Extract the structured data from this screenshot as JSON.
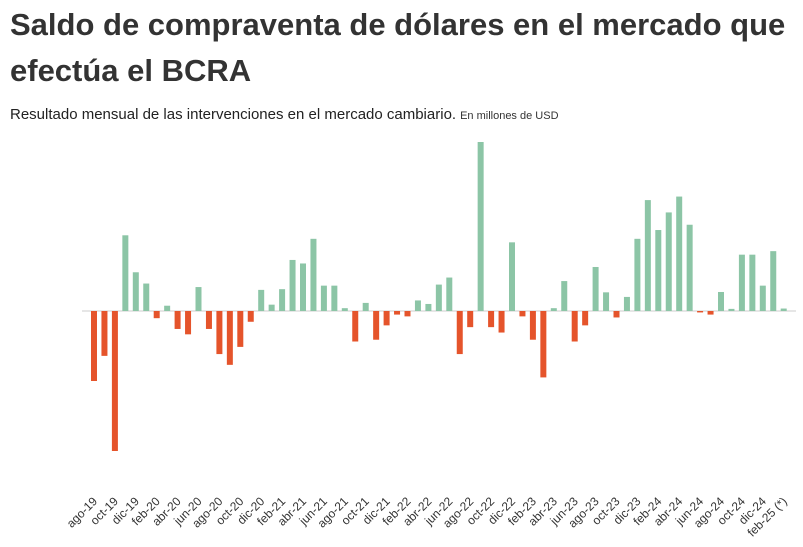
{
  "chart_data": {
    "type": "bar",
    "title": "Saldo de compraventa de dólares en el mercado que efectúa el BCRA",
    "subtitle": "Resultado  mensual de las intervenciones en el mercado cambiario.",
    "unit_note": "En millones de USD",
    "xlabel": "",
    "ylabel": "",
    "ylim": [
      -3900,
      4800
    ],
    "grid": false,
    "legend": "none",
    "colors": {
      "positive": "#8cc5a6",
      "negative": "#e5542b",
      "baseline": "#cccccc"
    },
    "categories": [
      "ago-19",
      "sep-19",
      "oct-19",
      "nov-19",
      "dic-19",
      "ene-20",
      "feb-20",
      "mar-20",
      "abr-20",
      "may-20",
      "jun-20",
      "jul-20",
      "ago-20",
      "sep-20",
      "oct-20",
      "nov-20",
      "dic-20",
      "ene-21",
      "feb-21",
      "mar-21",
      "abr-21",
      "may-21",
      "jun-21",
      "jul-21",
      "ago-21",
      "sep-21",
      "oct-21",
      "nov-21",
      "dic-21",
      "ene-22",
      "feb-22",
      "mar-22",
      "abr-22",
      "may-22",
      "jun-22",
      "jul-22",
      "ago-22",
      "sep-22",
      "oct-22",
      "nov-22",
      "dic-22",
      "ene-23",
      "feb-23",
      "mar-23",
      "abr-23",
      "may-23",
      "jun-23",
      "jul-23",
      "ago-23",
      "sep-23",
      "oct-23",
      "nov-23",
      "dic-23",
      "ene-24",
      "feb-24",
      "mar-24",
      "abr-24",
      "may-24",
      "jun-24",
      "jul-24",
      "ago-24",
      "sep-24",
      "oct-24",
      "nov-24",
      "dic-24",
      "ene-25",
      "feb-25 (*)"
    ],
    "tick_labels": [
      {
        "index": 0,
        "label": "ago-19"
      },
      {
        "index": 2,
        "label": "oct-19"
      },
      {
        "index": 4,
        "label": "dic-19"
      },
      {
        "index": 6,
        "label": "feb-20"
      },
      {
        "index": 8,
        "label": "abr-20"
      },
      {
        "index": 10,
        "label": "jun-20"
      },
      {
        "index": 12,
        "label": "ago-20"
      },
      {
        "index": 14,
        "label": "oct-20"
      },
      {
        "index": 16,
        "label": "dic-20"
      },
      {
        "index": 18,
        "label": "feb-21"
      },
      {
        "index": 20,
        "label": "abr-21"
      },
      {
        "index": 22,
        "label": "jun-21"
      },
      {
        "index": 24,
        "label": "ago-21"
      },
      {
        "index": 26,
        "label": "oct-21"
      },
      {
        "index": 28,
        "label": "dic-21"
      },
      {
        "index": 30,
        "label": "feb-22"
      },
      {
        "index": 32,
        "label": "abr-22"
      },
      {
        "index": 34,
        "label": "jun-22"
      },
      {
        "index": 36,
        "label": "ago-22"
      },
      {
        "index": 38,
        "label": "oct-22"
      },
      {
        "index": 40,
        "label": "dic-22"
      },
      {
        "index": 42,
        "label": "feb-23"
      },
      {
        "index": 44,
        "label": "abr-23"
      },
      {
        "index": 46,
        "label": "jun-23"
      },
      {
        "index": 48,
        "label": "ago-23"
      },
      {
        "index": 50,
        "label": "oct-23"
      },
      {
        "index": 52,
        "label": "dic-23"
      },
      {
        "index": 54,
        "label": "feb-24"
      },
      {
        "index": 56,
        "label": "abr-24"
      },
      {
        "index": 58,
        "label": "jun-24"
      },
      {
        "index": 60,
        "label": "ago-24"
      },
      {
        "index": 62,
        "label": "oct-24"
      },
      {
        "index": 64,
        "label": "dic-24"
      },
      {
        "index": 66,
        "label": "feb-25 (*)"
      }
    ],
    "values": [
      -1950,
      -1250,
      -3900,
      2150,
      1100,
      780,
      -200,
      150,
      -500,
      -650,
      680,
      -500,
      -1200,
      -1500,
      -1000,
      -300,
      600,
      180,
      620,
      1450,
      1350,
      2050,
      720,
      720,
      80,
      -850,
      230,
      -800,
      -400,
      -100,
      -150,
      300,
      200,
      750,
      950,
      -1200,
      -450,
      4800,
      -450,
      -600,
      1950,
      -150,
      -800,
      -1850,
      80,
      850,
      -850,
      -400,
      1250,
      530,
      -180,
      400,
      2050,
      3150,
      2300,
      2800,
      3250,
      2450,
      -40,
      -100,
      540,
      60,
      1600,
      1600,
      720,
      1700,
      70
    ]
  }
}
